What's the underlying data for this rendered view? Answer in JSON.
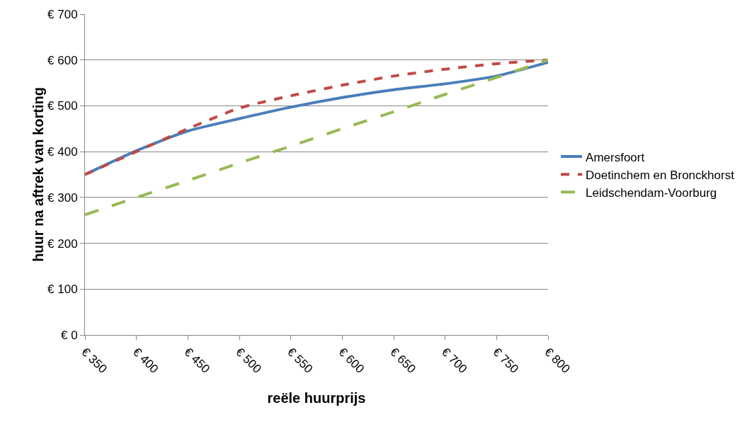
{
  "chart_data": {
    "type": "line",
    "xlabel": "reële huurprijs",
    "ylabel": "huur na aftrek van korting",
    "x": [
      350,
      400,
      450,
      500,
      550,
      600,
      650,
      700,
      750,
      800
    ],
    "series": [
      {
        "name": "Amersfoort",
        "color": "#4a7ebb",
        "line_style": "solid",
        "values": [
          350,
          402,
          445,
          472,
          497,
          518,
          535,
          548,
          565,
          595
        ]
      },
      {
        "name": "Doetinchem en Bronckhorst",
        "color": "#be4b48",
        "line_style": "dashed",
        "values": [
          350,
          400,
          450,
          495,
          522,
          545,
          565,
          580,
          592,
          600
        ]
      },
      {
        "name": "Leidschendam-Voorburg",
        "color": "#98b954",
        "line_style": "dashed",
        "values": [
          262,
          300,
          337,
          375,
          412,
          450,
          487,
          525,
          562,
          600
        ]
      }
    ],
    "xlim": [
      350,
      800
    ],
    "xticks": [
      {
        "value": 350,
        "label": "€ 350"
      },
      {
        "value": 400,
        "label": "€ 400"
      },
      {
        "value": 450,
        "label": "€ 450"
      },
      {
        "value": 500,
        "label": "€ 500"
      },
      {
        "value": 550,
        "label": "€ 550"
      },
      {
        "value": 600,
        "label": "€ 600"
      },
      {
        "value": 650,
        "label": "€ 650"
      },
      {
        "value": 700,
        "label": "€ 700"
      },
      {
        "value": 750,
        "label": "€ 750"
      },
      {
        "value": 800,
        "label": "€ 800"
      }
    ],
    "ylim": [
      0,
      700
    ],
    "yticks": [
      {
        "value": 0,
        "label": "€ 0"
      },
      {
        "value": 100,
        "label": "€ 100"
      },
      {
        "value": 200,
        "label": "€ 200"
      },
      {
        "value": 300,
        "label": "€ 300"
      },
      {
        "value": 400,
        "label": "€ 400"
      },
      {
        "value": 500,
        "label": "€ 500"
      },
      {
        "value": 600,
        "label": "€ 600"
      },
      {
        "value": 700,
        "label": "€ 700"
      }
    ],
    "grid": "y",
    "legend": "right",
    "marker": "none"
  }
}
